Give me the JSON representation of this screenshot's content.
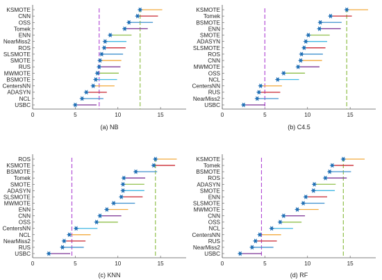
{
  "chart_data": [
    {
      "type": "scatter",
      "caption": "(a) NB",
      "xlim": [
        0,
        18
      ],
      "xticks": [
        0,
        5,
        10,
        15
      ],
      "grid": false,
      "categories": [
        "KSMOTE",
        "CNN",
        "OSS",
        "Tomek",
        "ENN",
        "NearMiss2",
        "ROS",
        "SLSMOTE",
        "SMOTE",
        "RUS",
        "MWMOTE",
        "BSMOTE",
        "CentersNN",
        "ADASYN",
        "NCL",
        "USBC"
      ],
      "values": [
        12.6,
        12.3,
        11.3,
        10.8,
        9.1,
        8.5,
        8.4,
        8.1,
        7.9,
        7.8,
        7.6,
        7.4,
        7.1,
        6.3,
        5.8,
        5.0
      ],
      "bar_ends": [
        15.2,
        14.7,
        14.1,
        13.5,
        11.6,
        11.0,
        10.9,
        10.6,
        10.4,
        10.3,
        10.1,
        9.9,
        9.6,
        8.7,
        8.3,
        7.5
      ],
      "purple_line": 7.8,
      "green_line": 12.6
    },
    {
      "type": "scatter",
      "caption": "(b) C4.5",
      "xlim": [
        0,
        18
      ],
      "xticks": [
        0,
        5,
        10,
        15
      ],
      "grid": false,
      "categories": [
        "KSMOTE",
        "Tomek",
        "BSMOTE",
        "ENN",
        "SMOTE",
        "ADASYN",
        "SLSMOTE",
        "ROS",
        "CNN",
        "MWMOTE",
        "OSS",
        "NCL",
        "CentersNN",
        "RUS",
        "NearMiss2",
        "USBC"
      ],
      "values": [
        14.6,
        12.7,
        11.5,
        11.4,
        10.1,
        9.8,
        9.6,
        9.3,
        9.2,
        8.9,
        7.2,
        6.5,
        4.5,
        4.3,
        4.1,
        2.5
      ],
      "bar_ends": [
        17.1,
        15.2,
        14.0,
        13.9,
        12.6,
        12.3,
        12.1,
        11.8,
        11.7,
        11.4,
        9.7,
        9.0,
        7.0,
        6.8,
        6.6,
        5.0
      ],
      "purple_line": 5.0,
      "green_line": 14.6
    },
    {
      "type": "scatter",
      "caption": "(c) KNN",
      "xlim": [
        0,
        18
      ],
      "xticks": [
        0,
        5,
        10,
        15
      ],
      "grid": false,
      "categories": [
        "ROS",
        "KSMOTE",
        "BSMOTE",
        "Tomek",
        "SMOTE",
        "ADASYN",
        "SLSMOTE",
        "MWMOTE",
        "ENN",
        "CNN",
        "OSS",
        "CentersNN",
        "NCL",
        "NearMiss2",
        "RUS",
        "USBC"
      ],
      "values": [
        14.4,
        14.2,
        12.1,
        10.7,
        10.6,
        10.6,
        10.4,
        9.5,
        8.7,
        7.9,
        7.5,
        5.1,
        4.3,
        3.7,
        3.5,
        1.9
      ],
      "bar_ends": [
        16.9,
        16.7,
        14.6,
        13.2,
        13.1,
        13.1,
        12.9,
        12.0,
        11.2,
        10.4,
        10.0,
        7.6,
        6.8,
        6.2,
        6.0,
        4.4
      ],
      "purple_line": 4.6,
      "green_line": 14.4
    },
    {
      "type": "scatter",
      "caption": "(d) RF",
      "xlim": [
        0,
        18
      ],
      "xticks": [
        0,
        5,
        10,
        15
      ],
      "grid": false,
      "categories": [
        "KSMOTE",
        "Tomek",
        "BSMOTE",
        "ROS",
        "ADASYN",
        "SMOTE",
        "ENN",
        "SLSMOTE",
        "MWMOTE",
        "CNN",
        "OSS",
        "NCL",
        "CentersNN",
        "RUS",
        "NearMiss2",
        "USBC"
      ],
      "values": [
        14.2,
        12.9,
        12.6,
        12.1,
        10.8,
        10.7,
        9.8,
        9.5,
        8.8,
        7.2,
        6.8,
        5.8,
        4.4,
        3.9,
        3.5,
        2.1
      ],
      "bar_ends": [
        16.7,
        15.4,
        15.1,
        14.6,
        13.3,
        13.2,
        12.3,
        12.0,
        11.3,
        9.7,
        9.3,
        8.3,
        6.9,
        6.4,
        6.0,
        4.6
      ],
      "purple_line": 4.6,
      "green_line": 14.2
    }
  ],
  "colors": {
    "marker": "#1f6fb5",
    "purple_line": "#b34fd6",
    "green_line": "#8fbf4a",
    "segments": [
      "#f2a93b",
      "#c9252f",
      "#3d8fce",
      "#7b3294",
      "#8fbf4a",
      "#3fb7e3",
      "#c9252f",
      "#3d8fce",
      "#f2a93b",
      "#7b3294",
      "#8fbf4a",
      "#3fb7e3",
      "#f2a93b",
      "#c9252f",
      "#3d8fce",
      "#7b3294"
    ]
  }
}
